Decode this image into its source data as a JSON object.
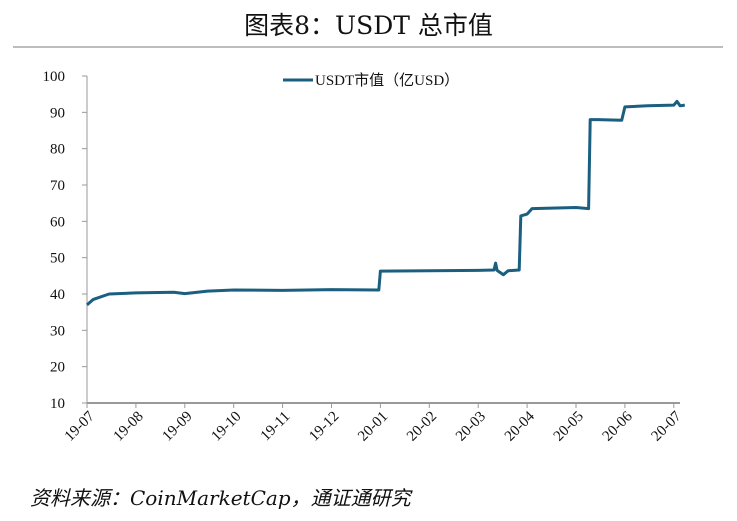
{
  "title": "图表8：USDT 总市值",
  "source": "资料来源：CoinMarketCap，通证通研究",
  "chart_data": {
    "type": "line",
    "title": "",
    "xlabel": "",
    "ylabel": "",
    "ylim": [
      10,
      100
    ],
    "yticks": [
      10,
      20,
      30,
      40,
      50,
      60,
      70,
      80,
      90,
      100
    ],
    "xticks": [
      "19-07",
      "19-08",
      "19-09",
      "19-10",
      "19-11",
      "19-12",
      "20-01",
      "20-02",
      "20-03",
      "20-04",
      "20-05",
      "20-06",
      "20-07"
    ],
    "grid": false,
    "legend": "top-center",
    "line_color": "#1a5f80",
    "series": [
      {
        "name": "USDT市值（亿USD）",
        "points": [
          [
            "2019-07-01",
            37.0
          ],
          [
            "2019-07-05",
            38.5
          ],
          [
            "2019-07-15",
            40.0
          ],
          [
            "2019-08-01",
            40.3
          ],
          [
            "2019-08-25",
            40.5
          ],
          [
            "2019-09-01",
            40.1
          ],
          [
            "2019-09-15",
            40.8
          ],
          [
            "2019-10-01",
            41.1
          ],
          [
            "2019-11-01",
            41.0
          ],
          [
            "2019-12-01",
            41.2
          ],
          [
            "2019-12-31",
            41.1
          ],
          [
            "2020-01-01",
            46.3
          ],
          [
            "2020-02-01",
            46.4
          ],
          [
            "2020-03-01",
            46.5
          ],
          [
            "2020-03-11",
            46.6
          ],
          [
            "2020-03-12",
            48.5
          ],
          [
            "2020-03-13",
            46.5
          ],
          [
            "2020-03-17",
            45.3
          ],
          [
            "2020-03-20",
            46.4
          ],
          [
            "2020-03-27",
            46.6
          ],
          [
            "2020-03-28",
            61.5
          ],
          [
            "2020-04-01",
            62.0
          ],
          [
            "2020-04-04",
            63.5
          ],
          [
            "2020-05-01",
            63.8
          ],
          [
            "2020-05-09",
            63.5
          ],
          [
            "2020-05-10",
            88.0
          ],
          [
            "2020-05-15",
            88.0
          ],
          [
            "2020-05-30",
            87.8
          ],
          [
            "2020-06-01",
            91.5
          ],
          [
            "2020-06-15",
            91.8
          ],
          [
            "2020-07-01",
            92.0
          ],
          [
            "2020-07-03",
            93.0
          ],
          [
            "2020-07-05",
            91.8
          ],
          [
            "2020-07-08",
            92.0
          ]
        ]
      }
    ]
  }
}
